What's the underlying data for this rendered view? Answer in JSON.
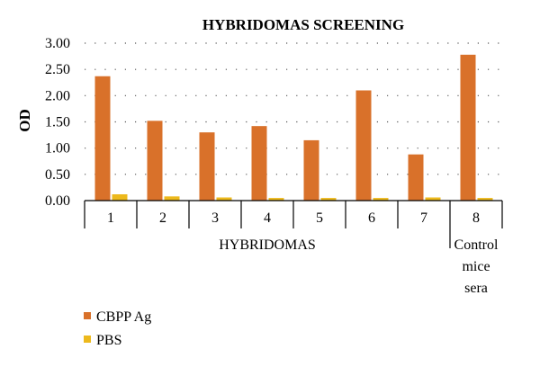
{
  "chart_data": {
    "type": "bar",
    "title": "HYBRIDOMAS SCREENING",
    "ylabel": "OD",
    "ylim": [
      0,
      3
    ],
    "yticks": [
      "0.00",
      "0.50",
      "1.00",
      "1.50",
      "2.00",
      "2.50",
      "3.00"
    ],
    "grid": "horizontal-dotted",
    "categories": [
      "1",
      "2",
      "3",
      "4",
      "5",
      "6",
      "7",
      "8"
    ],
    "category_groups": [
      {
        "label": "HYBRIDOMAS",
        "categories": [
          "1",
          "2",
          "3",
          "4",
          "5",
          "6",
          "7"
        ]
      },
      {
        "label": "Control mice sera",
        "label_lines": [
          "Control",
          "mice",
          "sera"
        ],
        "categories": [
          "8"
        ]
      }
    ],
    "series": [
      {
        "name": "CBPP Ag",
        "color": "#d9712a",
        "values": [
          2.37,
          1.52,
          1.3,
          1.42,
          1.15,
          2.1,
          0.88,
          2.78
        ]
      },
      {
        "name": "PBS",
        "color": "#edb91c",
        "values": [
          0.12,
          0.08,
          0.06,
          0.05,
          0.05,
          0.05,
          0.06,
          0.05
        ]
      }
    ],
    "legend": "bottom-left"
  }
}
